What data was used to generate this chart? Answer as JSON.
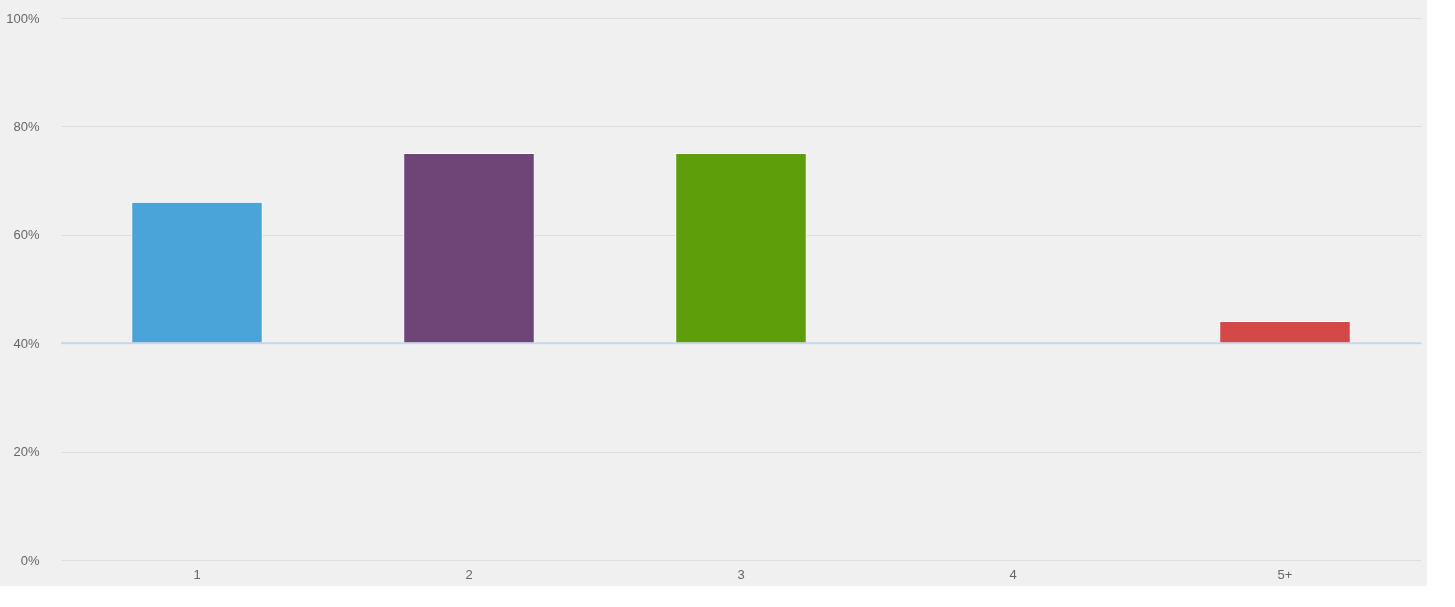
{
  "chart_data": {
    "type": "bar",
    "categories": [
      "1",
      "2",
      "3",
      "4",
      "5+"
    ],
    "base": [
      40,
      40,
      40,
      null,
      40
    ],
    "values": [
      26,
      35,
      35,
      null,
      4
    ],
    "colors": [
      "#4aa3d9",
      "#6f4577",
      "#5f9e0b",
      null,
      "#d44848"
    ],
    "ylim": [
      0,
      100
    ],
    "yticks": [
      {
        "value": 0,
        "label": "0%"
      },
      {
        "value": 20,
        "label": "20%"
      },
      {
        "value": 40,
        "label": "40%"
      },
      {
        "value": 60,
        "label": "60%"
      },
      {
        "value": 80,
        "label": "80%"
      },
      {
        "value": 100,
        "label": "100%"
      }
    ],
    "grid": "y",
    "ref_lines": [
      {
        "axis": "y",
        "value": 40,
        "color": "#c9d6e6"
      }
    ]
  }
}
